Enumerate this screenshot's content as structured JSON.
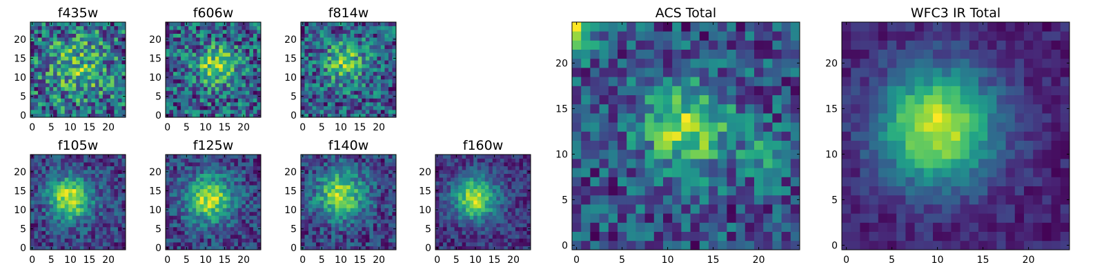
{
  "chart_data": [
    {
      "type": "heatmap",
      "title": "f435w",
      "colormap": "viridis",
      "grid_size": [
        25,
        25
      ],
      "x_ticks": [
        "0",
        "5",
        "10",
        "15",
        "20"
      ],
      "y_ticks": [
        "0",
        "5",
        "10",
        "15",
        "20"
      ],
      "xlim": [
        -0.5,
        24.5
      ],
      "ylim": [
        -0.5,
        24.5
      ],
      "seed": 11,
      "noise": 0.55,
      "blobs": [
        {
          "x": 12,
          "y": 13,
          "sigma": 6,
          "amp": 0.25
        }
      ]
    },
    {
      "type": "heatmap",
      "title": "f606w",
      "colormap": "viridis",
      "grid_size": [
        25,
        25
      ],
      "x_ticks": [
        "0",
        "5",
        "10",
        "15",
        "20"
      ],
      "y_ticks": [
        "0",
        "5",
        "10",
        "15",
        "20"
      ],
      "xlim": [
        -0.5,
        24.5
      ],
      "ylim": [
        -0.5,
        24.5
      ],
      "seed": 23,
      "noise": 0.45,
      "blobs": [
        {
          "x": 13,
          "y": 13,
          "sigma": 3.5,
          "amp": 0.35
        }
      ]
    },
    {
      "type": "heatmap",
      "title": "f814w",
      "colormap": "viridis",
      "grid_size": [
        25,
        25
      ],
      "x_ticks": [
        "0",
        "5",
        "10",
        "15",
        "20"
      ],
      "y_ticks": [
        "0",
        "5",
        "10",
        "15",
        "20"
      ],
      "xlim": [
        -0.5,
        24.5
      ],
      "ylim": [
        -0.5,
        24.5
      ],
      "seed": 37,
      "noise": 0.5,
      "blobs": [
        {
          "x": 11,
          "y": 14,
          "sigma": 4,
          "amp": 0.35
        }
      ]
    },
    {
      "type": "heatmap",
      "title": "f105w",
      "colormap": "viridis",
      "grid_size": [
        25,
        25
      ],
      "x_ticks": [
        "0",
        "5",
        "10",
        "15",
        "20"
      ],
      "y_ticks": [
        "0",
        "5",
        "10",
        "15",
        "20"
      ],
      "xlim": [
        -0.5,
        24.5
      ],
      "ylim": [
        -0.5,
        24.5
      ],
      "seed": 41,
      "noise": 0.3,
      "blobs": [
        {
          "x": 10,
          "y": 13,
          "sigma": 4,
          "amp": 0.55
        }
      ]
    },
    {
      "type": "heatmap",
      "title": "f125w",
      "colormap": "viridis",
      "grid_size": [
        25,
        25
      ],
      "x_ticks": [
        "0",
        "5",
        "10",
        "15",
        "20"
      ],
      "y_ticks": [
        "0",
        "5",
        "10",
        "15",
        "20"
      ],
      "xlim": [
        -0.5,
        24.5
      ],
      "ylim": [
        -0.5,
        24.5
      ],
      "seed": 53,
      "noise": 0.3,
      "blobs": [
        {
          "x": 11,
          "y": 13,
          "sigma": 4.5,
          "amp": 0.5
        }
      ]
    },
    {
      "type": "heatmap",
      "title": "f140w",
      "colormap": "viridis",
      "grid_size": [
        25,
        25
      ],
      "x_ticks": [
        "0",
        "5",
        "10",
        "15",
        "20"
      ],
      "y_ticks": [
        "0",
        "5",
        "10",
        "15",
        "20"
      ],
      "xlim": [
        -0.5,
        24.5
      ],
      "ylim": [
        -0.5,
        24.5
      ],
      "seed": 67,
      "noise": 0.32,
      "blobs": [
        {
          "x": 10,
          "y": 14,
          "sigma": 4.5,
          "amp": 0.5
        }
      ]
    },
    {
      "type": "heatmap",
      "title": "f160w",
      "colormap": "viridis",
      "grid_size": [
        25,
        25
      ],
      "x_ticks": [
        "0",
        "5",
        "10",
        "15",
        "20"
      ],
      "y_ticks": [
        "0",
        "5",
        "10",
        "15",
        "20"
      ],
      "xlim": [
        -0.5,
        24.5
      ],
      "ylim": [
        -0.5,
        24.5
      ],
      "seed": 79,
      "noise": 0.25,
      "blobs": [
        {
          "x": 10,
          "y": 13,
          "sigma": 4,
          "amp": 0.6
        }
      ]
    },
    {
      "type": "heatmap",
      "title": "ACS Total",
      "colormap": "viridis",
      "grid_size": [
        25,
        25
      ],
      "x_ticks": [
        "0",
        "5",
        "10",
        "15",
        "20"
      ],
      "y_ticks": [
        "0",
        "5",
        "10",
        "15",
        "20"
      ],
      "xlim": [
        -0.5,
        24.5
      ],
      "ylim": [
        -0.5,
        24.5
      ],
      "seed": 97,
      "noise": 0.35,
      "blobs": [
        {
          "x": 12,
          "y": 13,
          "sigma": 3.5,
          "amp": 0.4
        },
        {
          "x": 0,
          "y": 23,
          "sigma": 1.5,
          "amp": 0.45
        },
        {
          "x": 21,
          "y": 10,
          "sigma": 2,
          "amp": 0.2
        }
      ]
    },
    {
      "type": "heatmap",
      "title": "WFC3 IR Total",
      "colormap": "viridis",
      "grid_size": [
        25,
        25
      ],
      "x_ticks": [
        "0",
        "5",
        "10",
        "15",
        "20"
      ],
      "y_ticks": [
        "0",
        "5",
        "10",
        "15",
        "20"
      ],
      "xlim": [
        -0.5,
        24.5
      ],
      "ylim": [
        -0.5,
        24.5
      ],
      "seed": 113,
      "noise": 0.15,
      "blobs": [
        {
          "x": 10,
          "y": 13,
          "sigma": 4.5,
          "amp": 0.65
        }
      ]
    }
  ]
}
